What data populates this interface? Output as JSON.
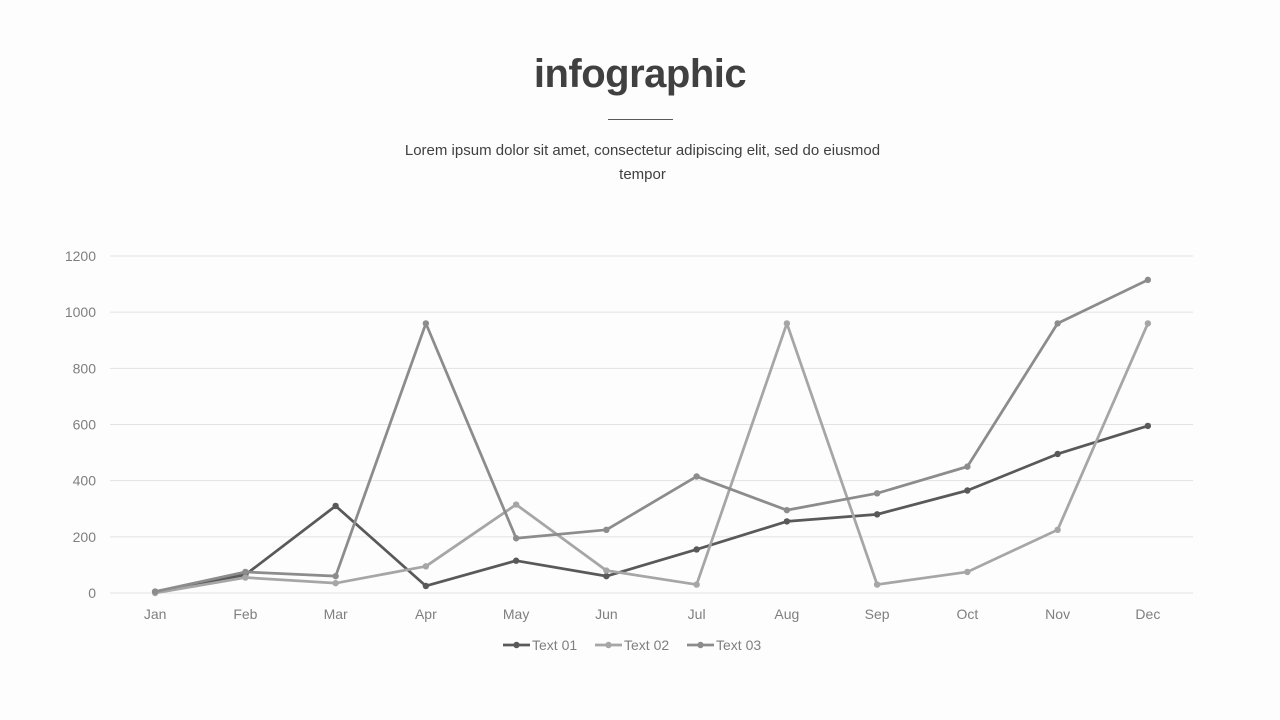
{
  "header": {
    "title": "infographic",
    "subtitle": "Lorem ipsum dolor sit amet, consectetur adipiscing elit, sed do eiusmod tempor"
  },
  "chart_data": {
    "type": "line",
    "categories": [
      "Jan",
      "Feb",
      "Mar",
      "Apr",
      "May",
      "Jun",
      "Jul",
      "Aug",
      "Sep",
      "Oct",
      "Nov",
      "Dec"
    ],
    "yticks": [
      "0",
      "200",
      "400",
      "600",
      "800",
      "1000",
      "1200"
    ],
    "ylim": [
      0,
      1200
    ],
    "grid": true,
    "legend_position": "bottom",
    "series": [
      {
        "name": "Text 01",
        "color": "#595959",
        "values": [
          5,
          65,
          310,
          25,
          115,
          60,
          155,
          255,
          280,
          365,
          495,
          595
        ]
      },
      {
        "name": "Text 02",
        "color": "#a6a6a6",
        "values": [
          0,
          55,
          35,
          95,
          315,
          80,
          30,
          960,
          30,
          75,
          225,
          960
        ]
      },
      {
        "name": "Text 03",
        "color": "#8c8c8c",
        "values": [
          5,
          75,
          60,
          960,
          195,
          225,
          415,
          295,
          355,
          450,
          960,
          1115
        ]
      }
    ]
  }
}
